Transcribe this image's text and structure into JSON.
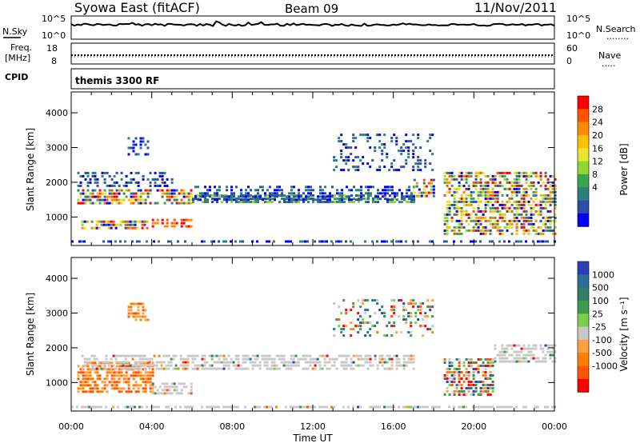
{
  "header": {
    "station": "Syowa East (fitACF)",
    "beam": "Beam 09",
    "date": "11/Nov/2011"
  },
  "sky_panel": {
    "left_label": "N.Sky",
    "left_ticks": [
      "10^5",
      "10^0"
    ],
    "right_ticks": [
      "10^5",
      "10^0"
    ],
    "right_label": "N.Search",
    "right_legend": "........"
  },
  "freq_panel": {
    "left_label_1": "Freq.",
    "left_label_2": "[MHz]",
    "left_ticks": [
      "18",
      "8"
    ],
    "right_ticks": [
      "60",
      "0"
    ],
    "right_label": "Nave",
    "right_legend": "....."
  },
  "cpid": {
    "label": "CPID",
    "value": "themis 3300 RF"
  },
  "chart_data": [
    {
      "type": "heatmap",
      "title": "",
      "xlabel": "Time UT",
      "ylabel": "Slant Range [km]",
      "xlim_hours": [
        0,
        24
      ],
      "ylim": [
        180,
        4600
      ],
      "yticks": [
        "4000",
        "3000",
        "2000",
        "1000"
      ],
      "colorbar": {
        "label": "Power [dB]",
        "ticks": [
          "28",
          "24",
          "20",
          "16",
          "12",
          "8",
          "4"
        ],
        "colors": [
          "#ff0000",
          "#ff5500",
          "#ff8c00",
          "#ffc000",
          "#e9e631",
          "#90d830",
          "#3ca34f",
          "#2c7f7f",
          "#2b4ea8",
          "#0000ff"
        ]
      },
      "echo_bands": [
        {
          "x": [
            0,
            24
          ],
          "y": [
            300,
            330
          ],
          "level": "weak"
        },
        {
          "x": [
            0.5,
            3.8
          ],
          "y": [
            700,
            900
          ],
          "level": "mixed"
        },
        {
          "x": [
            4,
            6
          ],
          "y": [
            700,
            950
          ],
          "level": "strong"
        },
        {
          "x": [
            0.3,
            6
          ],
          "y": [
            1350,
            1800
          ],
          "level": "mixed"
        },
        {
          "x": [
            6,
            17
          ],
          "y": [
            1400,
            1650
          ],
          "level": "mid"
        },
        {
          "x": [
            6,
            17
          ],
          "y": [
            1500,
            1900
          ],
          "level": "weak"
        },
        {
          "x": [
            17,
            18
          ],
          "y": [
            1600,
            2100
          ],
          "level": "mixed"
        },
        {
          "x": [
            13,
            18
          ],
          "y": [
            2300,
            3400
          ],
          "level": "sparse"
        },
        {
          "x": [
            18.5,
            24
          ],
          "y": [
            500,
            2300
          ],
          "level": "mixed"
        },
        {
          "x": [
            0.3,
            5
          ],
          "y": [
            1900,
            2300
          ],
          "level": "weak"
        },
        {
          "x": [
            2.8,
            3.8
          ],
          "y": [
            2800,
            3300
          ],
          "level": "weak"
        }
      ]
    },
    {
      "type": "heatmap",
      "title": "",
      "xlabel": "Time UT",
      "ylabel": "Slant Range [km]",
      "xlim_hours": [
        0,
        24
      ],
      "ylim": [
        180,
        4600
      ],
      "yticks": [
        "4000",
        "3000",
        "2000",
        "1000"
      ],
      "xticks": [
        "00:00",
        "04:00",
        "08:00",
        "12:00",
        "16:00",
        "20:00",
        "00:00"
      ],
      "colorbar": {
        "label": "Velocity [m s⁻¹]",
        "ticks": [
          "1000",
          "500",
          "100",
          "25",
          "-25",
          "-100",
          "-500",
          "-1000"
        ],
        "colors": [
          "#2b3fb8",
          "#2b6d9a",
          "#2f7f63",
          "#3d9b4c",
          "#77cf4a",
          "#c8c8c8",
          "#ffa040",
          "#ff8000",
          "#ff5500",
          "#ff0000"
        ]
      },
      "echo_bands": [
        {
          "x": [
            0,
            24
          ],
          "y": [
            300,
            330
          ],
          "level": "ground"
        },
        {
          "x": [
            0.3,
            4
          ],
          "y": [
            700,
            1600
          ],
          "level": "negative"
        },
        {
          "x": [
            4,
            6
          ],
          "y": [
            700,
            1000
          ],
          "level": "ground"
        },
        {
          "x": [
            0.5,
            17
          ],
          "y": [
            1400,
            1800
          ],
          "level": "ground"
        },
        {
          "x": [
            18.5,
            21
          ],
          "y": [
            600,
            1700
          ],
          "level": "mixed"
        },
        {
          "x": [
            21,
            24
          ],
          "y": [
            1600,
            2100
          ],
          "level": "ground"
        },
        {
          "x": [
            2.8,
            3.8
          ],
          "y": [
            2800,
            3300
          ],
          "level": "negative"
        },
        {
          "x": [
            13,
            18
          ],
          "y": [
            2300,
            3400
          ],
          "level": "sparse"
        }
      ]
    }
  ]
}
